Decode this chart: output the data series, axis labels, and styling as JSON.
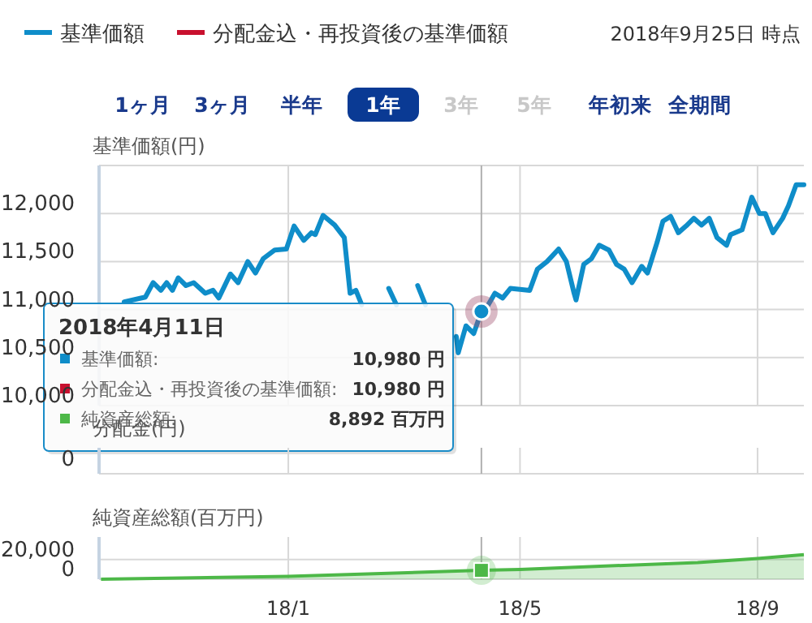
{
  "chart_data": [
    {
      "type": "line",
      "ylabel": "基準価額(円)",
      "legend": "top left",
      "grid": true,
      "tick_labels": "y",
      "marker": "none",
      "line_style": "solid",
      "xlim": [
        "2017-09-25",
        "2018-09-25"
      ],
      "xticks": [
        {
          "value": "2018-01-01",
          "label": null
        },
        {
          "value": "2018-05-01",
          "label": null
        },
        {
          "value": "2018-09-01",
          "label": null
        }
      ],
      "ylim": [
        10000,
        12500
      ],
      "yticks": [
        {
          "value": 10000,
          "label": "10,000"
        },
        {
          "value": 10500,
          "label": "10,500"
        },
        {
          "value": 11000,
          "label": "11,000"
        },
        {
          "value": 11500,
          "label": "11,500"
        },
        {
          "value": 12000,
          "label": "12,000"
        },
        {
          "value": 12500,
          "label": null
        }
      ],
      "x": [
        "2017-10-08",
        "2017-10-19",
        "2017-10-23",
        "2017-10-27",
        "2017-10-30",
        "2017-11-02",
        "2017-11-05",
        "2017-11-09",
        "2017-11-13",
        "2017-11-19",
        "2017-11-23",
        "2017-11-26",
        "2017-12-02",
        "2017-12-06",
        "2017-12-11",
        "2017-12-15",
        "2017-12-19",
        "2017-12-25",
        "2017-12-31",
        "2018-01-04",
        "2018-01-09",
        "2018-01-13",
        "2018-01-15",
        "2018-01-19",
        "2018-01-25",
        "2018-01-30",
        "2018-02-02",
        "2018-02-05",
        "2018-02-08",
        "2018-02-14",
        "2018-02-22",
        "2018-02-26",
        "2018-03-02",
        "2018-03-09",
        "2018-03-13",
        "2018-03-18",
        "2018-03-22",
        "2018-03-25",
        "2018-03-29",
        "2018-03-30",
        "2018-04-03",
        "2018-04-07",
        "2018-04-11",
        "2018-04-14",
        "2018-04-18",
        "2018-04-22",
        "2018-04-26",
        "2018-05-06",
        "2018-05-10",
        "2018-05-15",
        "2018-05-21",
        "2018-05-25",
        "2018-05-29",
        "2018-05-30",
        "2018-06-03",
        "2018-06-07",
        "2018-06-11",
        "2018-06-16",
        "2018-06-20",
        "2018-06-24",
        "2018-06-28",
        "2018-07-03",
        "2018-07-06",
        "2018-07-11",
        "2018-07-14",
        "2018-07-18",
        "2018-07-22",
        "2018-07-26",
        "2018-07-30",
        "2018-08-03",
        "2018-08-07",
        "2018-08-11",
        "2018-08-16",
        "2018-08-18",
        "2018-08-24",
        "2018-08-29",
        "2018-09-02",
        "2018-09-05",
        "2018-09-09",
        "2018-09-14",
        "2018-09-17",
        "2018-09-21",
        "2018-09-25"
      ],
      "series": [
        {
          "name": "基準価額",
          "color": "#0f8dc9",
          "values": [
            11080,
            11130,
            11280,
            11200,
            11280,
            11200,
            11330,
            11250,
            11280,
            11170,
            11200,
            11120,
            11370,
            11280,
            11500,
            11380,
            11530,
            11620,
            11630,
            11870,
            11720,
            11800,
            11780,
            11980,
            11880,
            11750,
            11170,
            11200,
            11050,
            null,
            11220,
            11050,
            null,
            11250,
            11050,
            null,
            null,
            null,
            10720,
            10550,
            10830,
            10750,
            10980,
            11030,
            11170,
            11120,
            11220,
            11200,
            11420,
            11500,
            11630,
            11500,
            11170,
            11100,
            11470,
            11530,
            11670,
            11620,
            11470,
            11420,
            11280,
            11450,
            11380,
            11700,
            11920,
            11970,
            11800,
            11870,
            11950,
            11880,
            11950,
            11750,
            11670,
            11780,
            11830,
            12170,
            12000,
            12000,
            11800,
            11950,
            12080,
            12300,
            12300
          ]
        },
        {
          "name": "分配金込・再投資後の基準価額",
          "color": "#c8102e",
          "values": [
            null,
            null,
            null,
            null,
            null,
            null,
            null,
            null,
            null,
            null,
            null,
            null,
            null,
            null,
            null,
            null,
            null,
            null,
            null,
            null,
            null,
            null,
            null,
            null,
            null,
            null,
            null,
            null,
            null,
            null,
            null,
            null,
            null,
            null,
            null,
            null,
            null,
            null,
            null,
            null,
            null,
            null,
            null,
            null,
            null,
            null,
            null,
            null,
            null,
            null,
            null,
            null,
            null,
            null,
            null,
            null,
            null,
            null,
            null,
            null,
            null,
            null,
            null,
            null,
            null,
            null,
            null,
            null,
            null,
            null,
            null,
            null,
            null,
            null,
            null,
            null,
            null,
            null,
            null,
            null,
            null,
            null,
            null
          ]
        }
      ],
      "ref_lines": [
        {
          "axis": "x",
          "value": "2018-04-11",
          "color": "#b0b0b0"
        }
      ],
      "annotations": [
        "2018年9月25日 時点",
        "1ヶ月",
        "3ヶ月",
        "半年",
        "1年",
        "3年",
        "5年",
        "年初来",
        "全期間",
        "2018年4月11日",
        "基準価額:",
        "10,980 円",
        "分配金込・再投資後の基準価額:",
        "10,980 円",
        "純資産総額:",
        "8,892 百万円"
      ]
    },
    {
      "type": "other",
      "ylabel": "分配金(円)",
      "annotations": [
        "0"
      ]
    },
    {
      "type": "area",
      "ylabel": "純資産総額(百万円)",
      "grid": true,
      "marker": "none",
      "xlim": [
        "2017-09-25",
        "2018-09-25"
      ],
      "xticks": [
        {
          "value": "2018-01-01",
          "label": "18/1"
        },
        {
          "value": "2018-05-01",
          "label": "18/5"
        },
        {
          "value": "2018-09-01",
          "label": "18/9"
        }
      ],
      "ylim": [
        0,
        43000
      ],
      "yticks": [
        {
          "value": 0,
          "label": "0"
        },
        {
          "value": 20000,
          "label": "20,000"
        }
      ],
      "x": [
        "2017-09-26",
        "2018-01-01",
        "2018-04-11",
        "2018-05-01",
        "2018-08-01",
        "2018-09-01",
        "2018-09-25"
      ],
      "values": [
        0,
        3000,
        9000,
        10000,
        17000,
        21000,
        25000
      ],
      "color": "#4db848",
      "ref_lines": [
        {
          "axis": "x",
          "value": "2018-04-11",
          "color": "#b0b0b0"
        }
      ]
    }
  ]
}
